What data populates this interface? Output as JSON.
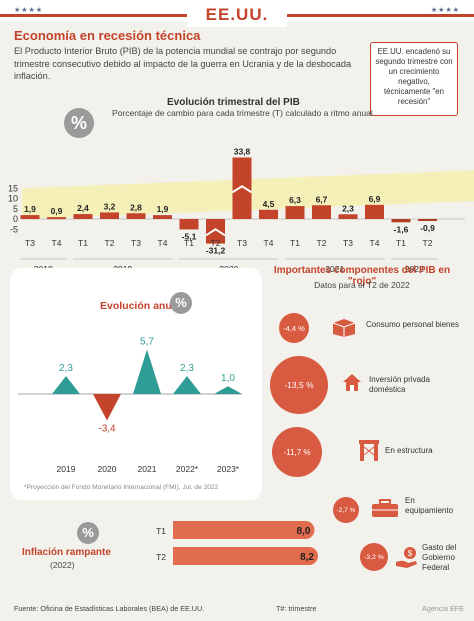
{
  "header": {
    "country": "EE.UU.",
    "stars_left": "★★★★",
    "stars_right": "★★★★"
  },
  "title": "Economía en recesión técnica",
  "intro": "El Producto Interior Bruto (PIB) de la potencia mundial se contrajo por segundo trimestre consecutivo debido al impacto de la guerra en Ucrania y de la desbocada inflación.",
  "note": "EE.UU. encadenó su segundo trimestre con un crecimiento negativo, técnicamente \"en recesión\"",
  "percent_icon": "%",
  "quarterly": {
    "title": "Evolución trimestral del PIB",
    "subtitle": "Porcentaje de cambio para cada trimestre (T) calculado a ritmo anual"
  },
  "annual": {
    "title": "Evolución anual",
    "projection_note": "*Proyección del Fondo Monetario Internacional (FMI), Jul. de 2022"
  },
  "components": {
    "title": "Importantes componentes del PIB en \"rojo\"",
    "subtitle": "Datos para el T2 de 2022",
    "items": [
      {
        "value": "-4,4 %",
        "label": "Consumo personal bienes",
        "icon": "box-icon"
      },
      {
        "value": "-13,5 %",
        "label": "Inversión privada doméstica",
        "icon": "house-icon"
      },
      {
        "value": "-11,7 %",
        "label": "En estructura",
        "icon": "structure-icon"
      },
      {
        "value": "-2,7 %",
        "label": "En equipamiento",
        "icon": "toolbox-icon"
      },
      {
        "value": "-3,2 %",
        "label": "Gasto del Gobierno Federal",
        "icon": "money-hand-icon"
      }
    ]
  },
  "inflation": {
    "title": "Inflación rampante",
    "subtitle": "(2022)"
  },
  "footer": {
    "source": "Fuente: Oficina de Estadísticas Laborales (BEA) de EE.UU.",
    "legend": "T#: trimestre",
    "credit": "Agencia EFE"
  },
  "colors": {
    "accent": "#c4432b",
    "teal": "#2f9d95",
    "bar_red": "#c4432b",
    "band": "#f5f0b8",
    "bubble": "#d85a40"
  },
  "chart_data": [
    {
      "type": "bar",
      "title": "Evolución trimestral del PIB",
      "subtitle": "Porcentaje de cambio para cada trimestre (T) calculado a ritmo anual",
      "categories": [
        "T3",
        "T4",
        "T1",
        "T2",
        "T3",
        "T4",
        "T1",
        "T2",
        "T3",
        "T4",
        "T1",
        "T2",
        "T3",
        "T4",
        "T1",
        "T2"
      ],
      "years": [
        {
          "label": "2018",
          "span": [
            0,
            1
          ]
        },
        {
          "label": "2019",
          "span": [
            2,
            5
          ]
        },
        {
          "label": "2020",
          "span": [
            6,
            9
          ]
        },
        {
          "label": "2021",
          "span": [
            10,
            13
          ]
        },
        {
          "label": "2022",
          "span": [
            14,
            15
          ]
        }
      ],
      "values": [
        1.9,
        0.9,
        2.4,
        3.2,
        2.8,
        1.9,
        -5.1,
        -31.2,
        33.8,
        4.5,
        6.3,
        6.7,
        2.3,
        6.9,
        -1.6,
        -0.9
      ],
      "value_labels": [
        "1,9",
        "0,9",
        "2,4",
        "3,2",
        "2,8",
        "1,9",
        "-5,1",
        "-31,2",
        "33,8",
        "4,5",
        "6,3",
        "6,7",
        "2,3",
        "6,9",
        "-1,6",
        "-0,9"
      ],
      "yticks": [
        "15",
        "10",
        "5",
        "0",
        "-5"
      ],
      "ylim": [
        -5,
        15
      ]
    },
    {
      "type": "line",
      "title": "Evolución anual",
      "categories": [
        "2019",
        "2020",
        "2021",
        "2022*",
        "2023*"
      ],
      "values": [
        2.3,
        -3.4,
        5.7,
        2.3,
        1.0
      ],
      "value_labels": [
        "2,3",
        "-3,4",
        "5,7",
        "2,3",
        "1,0"
      ]
    },
    {
      "type": "bar",
      "title": "Inflación rampante",
      "subtitle": "(2022)",
      "categories": [
        "T1",
        "T2"
      ],
      "values": [
        8.0,
        8.2
      ],
      "value_labels": [
        "8,0",
        "8,2"
      ]
    }
  ]
}
